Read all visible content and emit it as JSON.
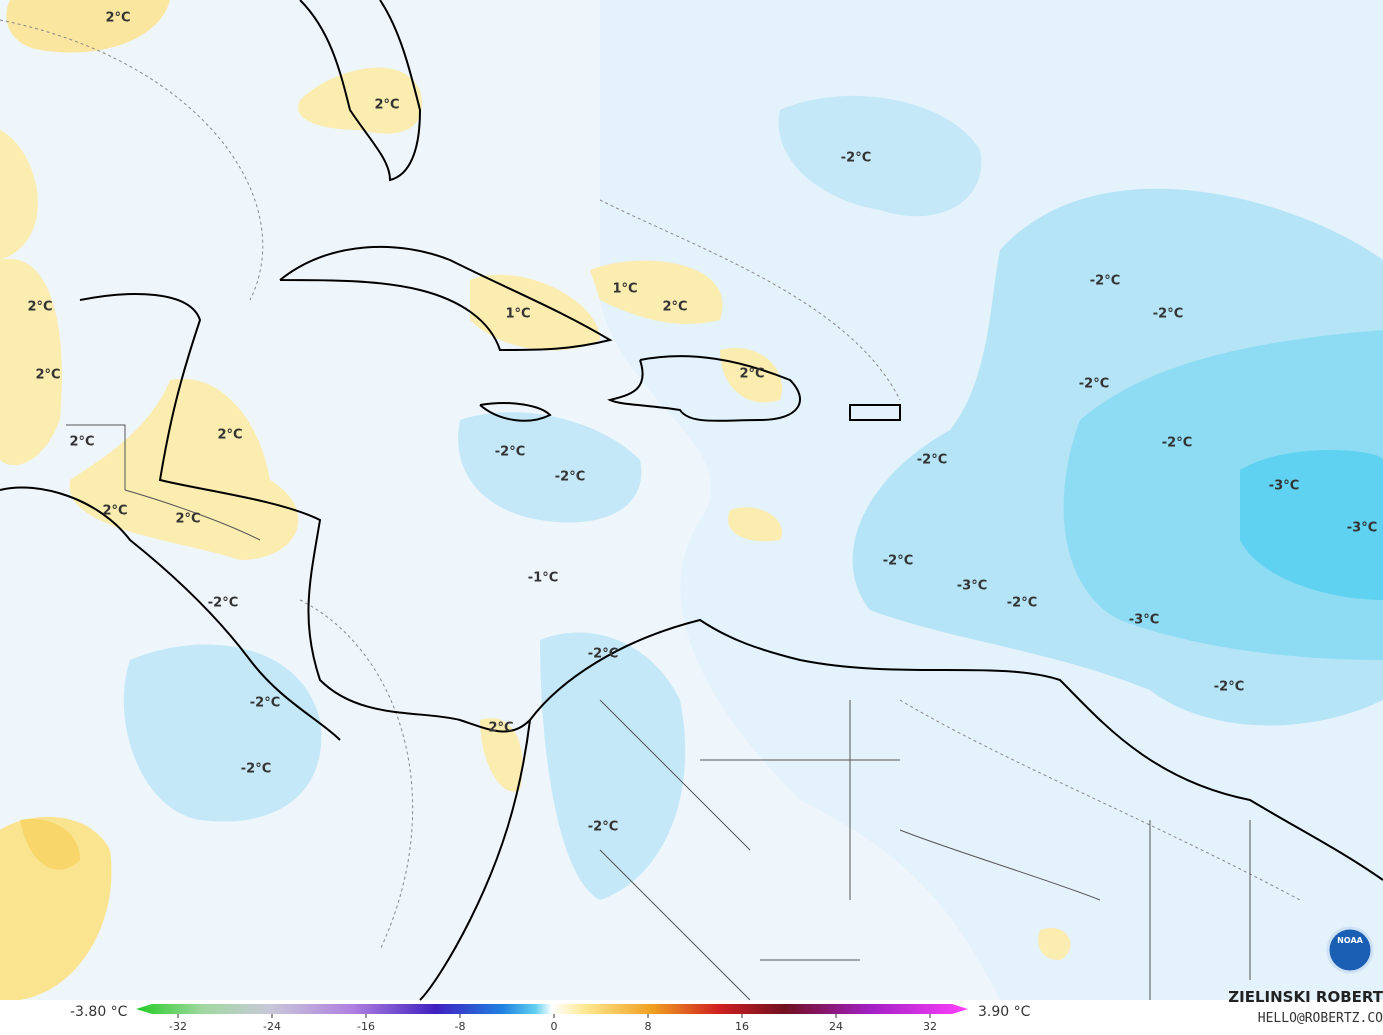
{
  "map": {
    "contour_labels": [
      "2°C",
      "2°C",
      "-2°C",
      "-2°C",
      "-2°C",
      "2°C",
      "1°C",
      "2°C",
      "1°C",
      "2°C",
      "-2°C",
      "2°C",
      "2°C",
      "2°C",
      "-2°C",
      "-2°C",
      "-2°C",
      "-2°C",
      "-3°C",
      "2°C",
      "2°C",
      "-3°C",
      "-2°C",
      "-1°C",
      "-3°C",
      "-2°C",
      "-2°C",
      "-3°C",
      "-2°C",
      "-2°C",
      "-2°C",
      "2°C",
      "-2°C",
      "-2°C"
    ],
    "logo": "NOAA"
  },
  "colorbar": {
    "min_label": "-3.80 °C",
    "max_label": "3.90 °C",
    "ticks": [
      -32,
      -24,
      -16,
      -8,
      0,
      8,
      16,
      24,
      32
    ]
  },
  "credits": {
    "name": "ZIELINSKI ROBERT",
    "contact": "HELLO@ROBERTZ.CO"
  }
}
